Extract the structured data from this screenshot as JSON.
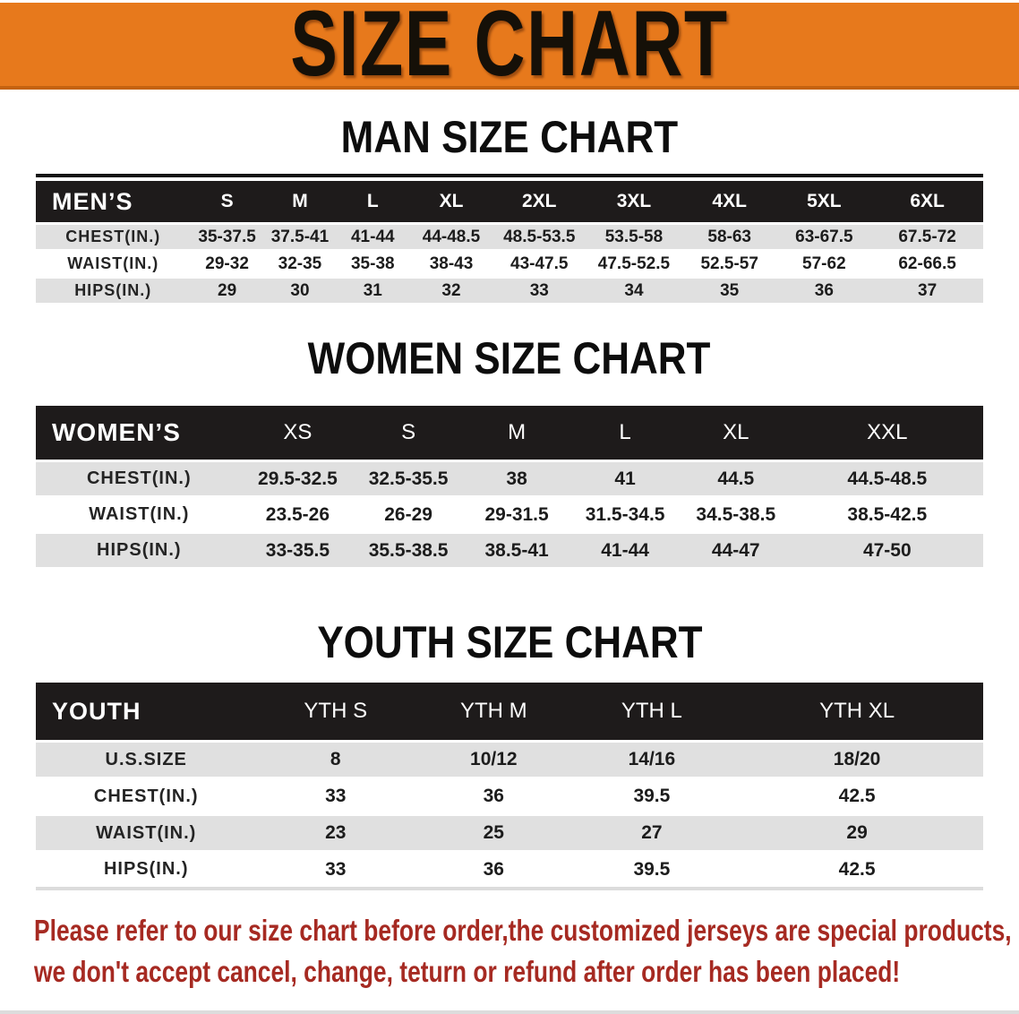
{
  "banner": {
    "title": "SIZE CHART",
    "bg_color": "#E7791C",
    "text_color": "#151008"
  },
  "sections": {
    "men": {
      "heading": "MAN SIZE CHART",
      "table": {
        "header": [
          "MEN’S",
          "S",
          "M",
          "L",
          "XL",
          "2XL",
          "3XL",
          "4XL",
          "5XL",
          "6XL"
        ],
        "rows": [
          [
            "CHEST(IN.)",
            "35-37.5",
            "37.5-41",
            "41-44",
            "44-48.5",
            "48.5-53.5",
            "53.5-58",
            "58-63",
            "63-67.5",
            "67.5-72"
          ],
          [
            "WAIST(IN.)",
            "29-32",
            "32-35",
            "35-38",
            "38-43",
            "43-47.5",
            "47.5-52.5",
            "52.5-57",
            "57-62",
            "62-66.5"
          ],
          [
            "HIPS(IN.)",
            "29",
            "30",
            "31",
            "32",
            "33",
            "34",
            "35",
            "36",
            "37"
          ]
        ]
      }
    },
    "women": {
      "heading": "WOMEN SIZE CHART",
      "table": {
        "header": [
          "WOMEN’S",
          "XS",
          "S",
          "M",
          "L",
          "XL",
          "XXL"
        ],
        "rows": [
          [
            "CHEST(IN.)",
            "29.5-32.5",
            "32.5-35.5",
            "38",
            "41",
            "44.5",
            "44.5-48.5"
          ],
          [
            "WAIST(IN.)",
            "23.5-26",
            "26-29",
            "29-31.5",
            "31.5-34.5",
            "34.5-38.5",
            "38.5-42.5"
          ],
          [
            "HIPS(IN.)",
            "33-35.5",
            "35.5-38.5",
            "38.5-41",
            "41-44",
            "44-47",
            "47-50"
          ]
        ]
      }
    },
    "youth": {
      "heading": "YOUTH SIZE CHART",
      "table": {
        "header": [
          "YOUTH",
          "YTH S",
          "YTH M",
          "YTH L",
          "YTH XL"
        ],
        "rows": [
          [
            "U.S.SIZE",
            "8",
            "10/12",
            "14/16",
            "18/20"
          ],
          [
            "CHEST(IN.)",
            "33",
            "36",
            "39.5",
            "42.5"
          ],
          [
            "WAIST(IN.)",
            "23",
            "25",
            "27",
            "29"
          ],
          [
            "HIPS(IN.)",
            "33",
            "36",
            "39.5",
            "42.5"
          ]
        ]
      }
    }
  },
  "disclaimer": {
    "line1": "Please refer to our size chart before order,the customized jerseys are special products,",
    "line2": "we don't accept cancel, change, teturn or refund after order has been placed!",
    "color": "#A62A22"
  }
}
